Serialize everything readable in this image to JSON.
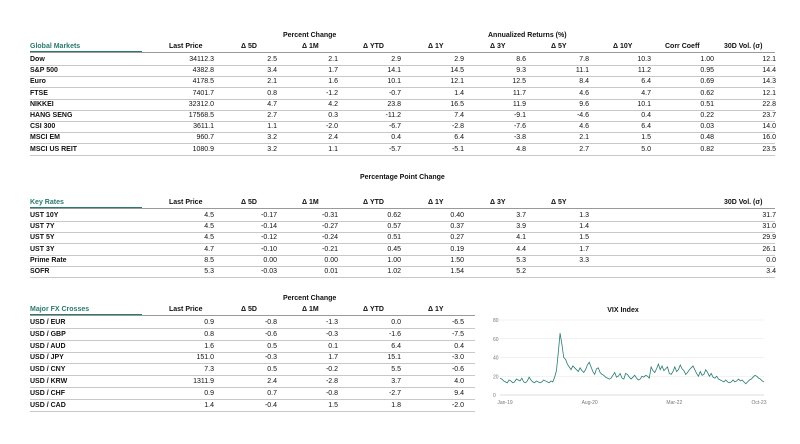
{
  "markets": {
    "group_header": "Percent Change",
    "group_header_ann": "Annualized Returns (%)",
    "title": "Global Markets",
    "columns": [
      "Last Price",
      "Δ 5D",
      "Δ 1M",
      "Δ YTD",
      "Δ 1Y",
      "Δ 3Y",
      "Δ 5Y",
      "Δ 10Y",
      "Corr Coeff",
      "30D Vol. (σ)"
    ],
    "rows": [
      {
        "name": "Dow",
        "values": [
          "34112.3",
          "2.5",
          "2.1",
          "2.9",
          "2.9",
          "8.6",
          "7.8",
          "10.3",
          "1.00",
          "12.1"
        ]
      },
      {
        "name": "S&P 500",
        "values": [
          "4382.8",
          "3.4",
          "1.7",
          "14.1",
          "14.5",
          "9.3",
          "11.1",
          "11.2",
          "0.95",
          "14.4"
        ]
      },
      {
        "name": "Euro",
        "values": [
          "4178.5",
          "2.1",
          "1.6",
          "10.1",
          "12.1",
          "12.5",
          "8.4",
          "6.4",
          "0.69",
          "14.3"
        ]
      },
      {
        "name": "FTSE",
        "values": [
          "7401.7",
          "0.8",
          "-1.2",
          "-0.7",
          "1.4",
          "11.7",
          "4.6",
          "4.7",
          "0.62",
          "12.1"
        ]
      },
      {
        "name": "NIKKEI",
        "values": [
          "32312.0",
          "4.7",
          "4.2",
          "23.8",
          "16.5",
          "11.9",
          "9.6",
          "10.1",
          "0.51",
          "22.8"
        ]
      },
      {
        "name": "HANG SENG",
        "values": [
          "17568.5",
          "2.7",
          "0.3",
          "-11.2",
          "7.4",
          "-9.1",
          "-4.6",
          "0.4",
          "0.22",
          "23.7"
        ]
      },
      {
        "name": "CSI 300",
        "values": [
          "3611.1",
          "1.1",
          "-2.0",
          "-6.7",
          "-2.8",
          "-7.6",
          "4.6",
          "6.4",
          "0.03",
          "14.0"
        ]
      },
      {
        "name": "MSCI EM",
        "values": [
          "960.7",
          "3.2",
          "2.4",
          "0.4",
          "6.4",
          "-3.8",
          "2.1",
          "1.5",
          "0.48",
          "16.0"
        ]
      },
      {
        "name": "MSCI US REIT",
        "values": [
          "1080.9",
          "3.2",
          "1.1",
          "-5.7",
          "-5.1",
          "4.8",
          "2.7",
          "5.0",
          "0.82",
          "23.5"
        ]
      }
    ]
  },
  "rates": {
    "group_header": "Percentage Point Change",
    "title": "Key Rates",
    "columns": [
      "Last Price",
      "Δ 5D",
      "Δ 1M",
      "Δ YTD",
      "Δ 1Y",
      "Δ 3Y",
      "Δ 5Y",
      "30D Vol. (σ)"
    ],
    "rows": [
      {
        "name": "UST 10Y",
        "values": [
          "4.5",
          "-0.17",
          "-0.31",
          "0.62",
          "0.40",
          "3.7",
          "1.3",
          "31.7"
        ]
      },
      {
        "name": "UST 7Y",
        "values": [
          "4.5",
          "-0.14",
          "-0.27",
          "0.57",
          "0.37",
          "3.9",
          "1.4",
          "31.0"
        ]
      },
      {
        "name": "UST 5Y",
        "values": [
          "4.5",
          "-0.12",
          "-0.24",
          "0.51",
          "0.27",
          "4.1",
          "1.5",
          "29.9"
        ]
      },
      {
        "name": "UST 3Y",
        "values": [
          "4.7",
          "-0.10",
          "-0.21",
          "0.45",
          "0.19",
          "4.4",
          "1.7",
          "26.1"
        ]
      },
      {
        "name": "Prime Rate",
        "values": [
          "8.5",
          "0.00",
          "0.00",
          "1.00",
          "1.50",
          "5.3",
          "3.3",
          "0.0"
        ]
      },
      {
        "name": "SOFR",
        "values": [
          "5.3",
          "-0.03",
          "0.01",
          "1.02",
          "1.54",
          "5.2",
          "",
          "3.4"
        ]
      }
    ]
  },
  "fx": {
    "group_header": "Percent Change",
    "title": "Major FX Crosses",
    "columns": [
      "Last Price",
      "Δ 5D",
      "Δ 1M",
      "Δ YTD",
      "Δ 1Y"
    ],
    "rows": [
      {
        "name": "USD / EUR",
        "values": [
          "0.9",
          "-0.8",
          "-1.3",
          "0.0",
          "-6.5"
        ]
      },
      {
        "name": "USD / GBP",
        "values": [
          "0.8",
          "-0.6",
          "-0.3",
          "-1.6",
          "-7.5"
        ]
      },
      {
        "name": "USD / AUD",
        "values": [
          "1.6",
          "0.5",
          "0.1",
          "6.4",
          "0.4"
        ]
      },
      {
        "name": "USD / JPY",
        "values": [
          "151.0",
          "-0.3",
          "1.7",
          "15.1",
          "-3.0"
        ]
      },
      {
        "name": "USD / CNY",
        "values": [
          "7.3",
          "0.5",
          "-0.2",
          "5.5",
          "-0.6"
        ]
      },
      {
        "name": "USD / KRW",
        "values": [
          "1311.9",
          "2.4",
          "-2.8",
          "3.7",
          "4.0"
        ]
      },
      {
        "name": "USD / CHF",
        "values": [
          "0.9",
          "0.7",
          "-0.8",
          "-2.7",
          "9.4"
        ]
      },
      {
        "name": "USD / CAD",
        "values": [
          "1.4",
          "-0.4",
          "1.5",
          "1.8",
          "-2.0"
        ]
      }
    ]
  },
  "colors": {
    "accent": "#2a7a70",
    "line": "#2a7a70",
    "rule": "#c8c8c8"
  },
  "chart_data": {
    "type": "line",
    "title": "VIX Index",
    "xlabel": "",
    "ylabel": "",
    "ylim": [
      0,
      80
    ],
    "yticks": [
      0,
      20,
      40,
      60,
      80
    ],
    "xticks": [
      "Jan-19",
      "Aug-20",
      "Mar-22",
      "Oct-23"
    ],
    "series": [
      {
        "name": "VIX Index",
        "values": [
          18,
          17,
          15,
          14,
          13,
          16,
          15,
          13,
          14,
          17,
          16,
          15,
          18,
          14,
          13,
          15,
          19,
          16,
          14,
          13,
          15,
          14,
          13,
          14,
          16,
          15,
          14,
          13,
          15,
          14,
          19,
          26,
          45,
          66,
          54,
          40,
          38,
          33,
          30,
          27,
          31,
          29,
          27,
          25,
          29,
          26,
          24,
          27,
          32,
          35,
          30,
          25,
          22,
          28,
          29,
          24,
          22,
          21,
          19,
          18,
          17,
          18,
          21,
          24,
          19,
          20,
          23,
          18,
          17,
          23,
          22,
          19,
          17,
          19,
          21,
          18,
          16,
          17,
          20,
          19,
          21,
          20,
          18,
          30,
          26,
          24,
          28,
          33,
          27,
          31,
          26,
          28,
          30,
          23,
          22,
          25,
          30,
          25,
          27,
          32,
          28,
          26,
          22,
          24,
          27,
          29,
          31,
          27,
          23,
          20,
          25,
          21,
          22,
          27,
          24,
          20,
          23,
          19,
          18,
          20,
          17,
          16,
          15,
          14,
          16,
          14,
          13,
          14,
          16,
          14,
          15,
          17,
          15,
          16,
          14,
          12,
          14,
          16,
          17,
          19,
          21,
          20,
          18,
          17,
          15,
          14
        ]
      }
    ]
  }
}
